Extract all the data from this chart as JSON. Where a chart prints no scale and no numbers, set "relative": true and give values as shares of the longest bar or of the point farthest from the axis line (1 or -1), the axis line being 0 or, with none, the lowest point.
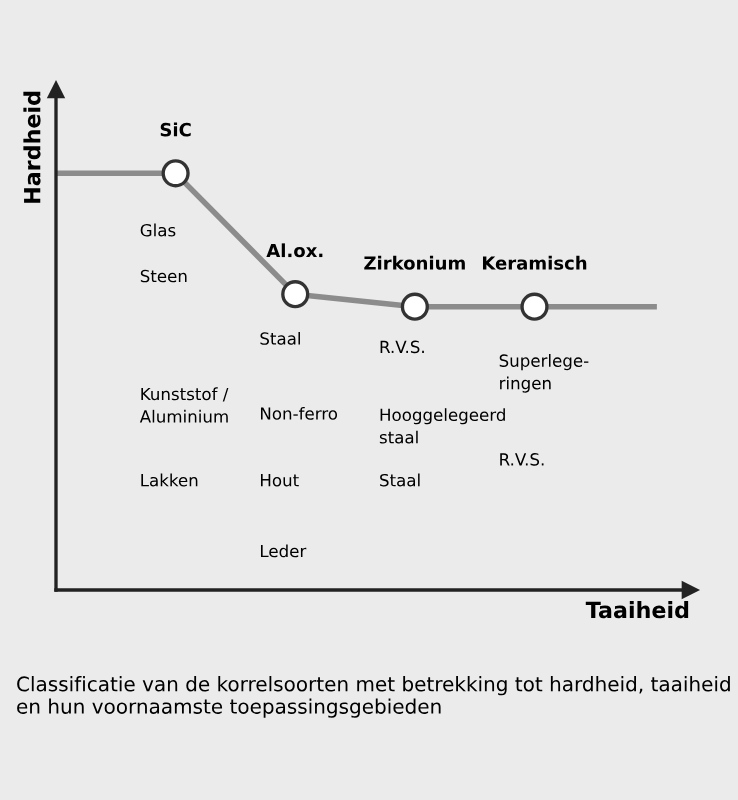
{
  "chart_data": {
    "type": "line",
    "relative": true,
    "xlabel": "Taaiheid",
    "ylabel": "Hardheid",
    "categories": [
      null,
      "SiC",
      "Al.ox.",
      "Zirkonium",
      "Keramisch",
      null
    ],
    "series": [
      {
        "color": "#8c8c8c",
        "values": [
          1,
          1,
          0.71,
          0.68,
          0.68,
          0.68
        ],
        "marker": "none"
      },
      {
        "type": "scatter",
        "color": "#ffffff",
        "values": [
          null,
          1,
          0.71,
          0.68,
          0.68,
          null
        ],
        "marker": "circle"
      }
    ],
    "annotations": [
      "Glas",
      "Steen",
      "Kunststof /\nAluminium",
      "Lakken",
      "Staal",
      "Non-ferro",
      "Hout",
      "Leder",
      "R.V.S.",
      "Hooggelegeerd\nstaal",
      "Staal",
      "Superlege-\nringen",
      "R.V.S.",
      "Classificatie van de korrelsoorten met betrekking tot hardheid, taaiheid en hun voornaamste toepassingsgebieden"
    ],
    "legend": false
  }
}
